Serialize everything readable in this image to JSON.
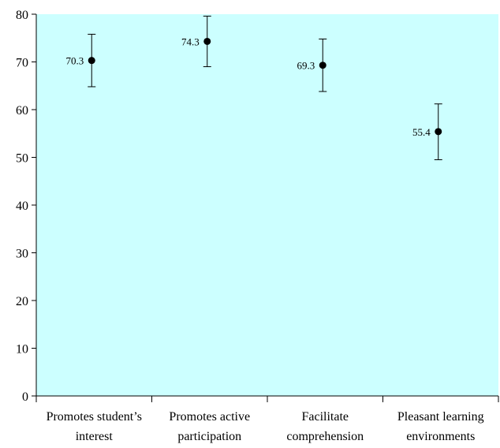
{
  "chart_data": {
    "type": "scatter",
    "title": "",
    "xlabel": "",
    "ylabel": "",
    "categories": [
      [
        "Promotes student’s",
        "interest"
      ],
      [
        "Promotes active",
        "participation"
      ],
      [
        "Facilitate",
        "comprehension"
      ],
      [
        "Pleasant learning",
        "environments"
      ]
    ],
    "values": [
      70.3,
      74.3,
      69.3,
      55.4
    ],
    "error_low": [
      64.8,
      69.0,
      63.8,
      49.5
    ],
    "error_high": [
      75.8,
      79.6,
      74.8,
      61.2
    ],
    "data_labels": [
      "70.3",
      "74.3",
      "69.3",
      "55.4"
    ],
    "ylim": [
      0,
      80
    ],
    "yticks": [
      0,
      10,
      20,
      30,
      40,
      50,
      60,
      70,
      80
    ],
    "grid": false,
    "legend": "none",
    "colors": {
      "plot_background": "#ccffff",
      "marker": "#000000",
      "axis": "#000000"
    }
  }
}
